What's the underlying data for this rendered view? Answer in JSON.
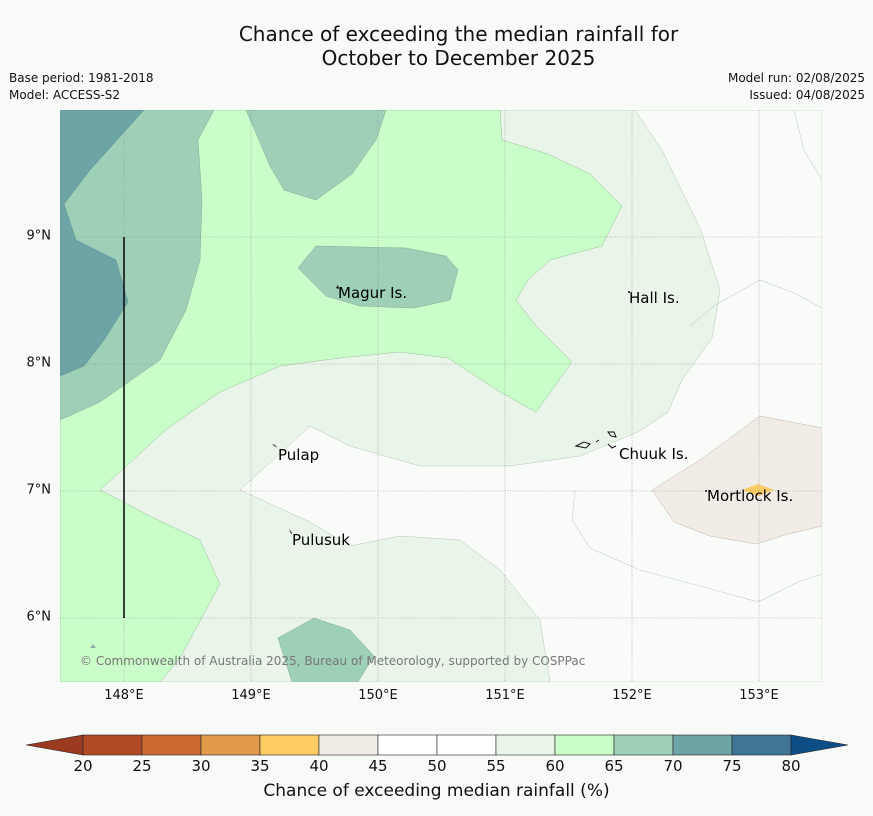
{
  "title_line1": "Chance of exceeding the median rainfall for",
  "title_line2": "October to December 2025",
  "base_period": "Base period: 1981-2018",
  "model": "Model: ACCESS-S2",
  "model_run": "Model run: 02/08/2025",
  "issued": "Issued: 04/08/2025",
  "latitude_labels": [
    "9°N",
    "8°N",
    "7°N",
    "6°N"
  ],
  "longitude_labels": [
    "148°E",
    "149°E",
    "150°E",
    "151°E",
    "152°E",
    "153°E"
  ],
  "islands": {
    "magur": "Magur Is.",
    "hall": "Hall Is.",
    "pulap": "Pulap",
    "chuuk": "Chuuk Is.",
    "mortlock": "Mortlock Is.",
    "pulusuk": "Pulusuk"
  },
  "copyright": "© Commonwealth of Australia 2025, Bureau of Meteorology, supported by COSPPac",
  "colorbar": {
    "label": "Chance of exceeding median rainfall (%)",
    "ticks": [
      "20",
      "25",
      "30",
      "35",
      "40",
      "45",
      "50",
      "55",
      "60",
      "65",
      "70",
      "75",
      "80"
    ],
    "colors": [
      "#b04a26",
      "#cc6a33",
      "#e09a4a",
      "#fdcd63",
      "#f1ede6",
      "#ffffff",
      "#ffffff",
      "#eaf5ea",
      "#c9fdc9",
      "#9ecfb7",
      "#6da4a6",
      "#3e7494"
    ],
    "under_color": "#9b3a20",
    "over_color": "#0d4e86"
  },
  "legend_colors": {
    "c40_45": "#f1ede6",
    "c55_60": "#eaf5ea",
    "c60_65": "#c9fdc9",
    "c65_70": "#9ecfb7",
    "c70_75": "#6da4a6",
    "c35_40": "#fdcd63"
  }
}
